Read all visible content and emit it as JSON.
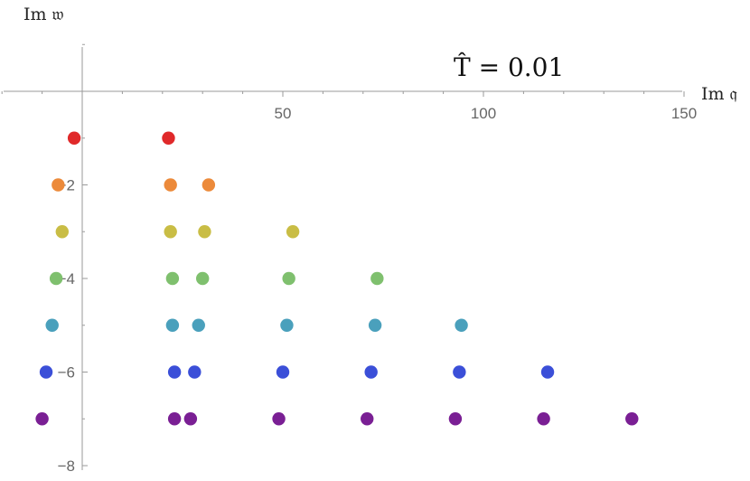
{
  "chart_data": {
    "type": "scatter",
    "title": "",
    "annotation": "T̂ = 0.01",
    "xlabel": "Im 𝔮",
    "ylabel": "Im 𝔴",
    "xlim": [
      -20,
      150
    ],
    "ylim": [
      -8,
      1.6
    ],
    "x_ticks": [
      50,
      100,
      150
    ],
    "y_ticks": [
      -2,
      -4,
      -6,
      -8
    ],
    "grid": false,
    "series": [
      {
        "color": "#e0292a",
        "points": [
          [
            -2,
            -1
          ],
          [
            21.5,
            -1
          ]
        ]
      },
      {
        "color": "#ec8a3a",
        "points": [
          [
            -6,
            -2
          ],
          [
            22,
            -2
          ],
          [
            31.5,
            -2
          ]
        ]
      },
      {
        "color": "#c9bd45",
        "points": [
          [
            -5,
            -3
          ],
          [
            22,
            -3
          ],
          [
            30.5,
            -3
          ],
          [
            52.5,
            -3
          ]
        ]
      },
      {
        "color": "#7fc06e",
        "points": [
          [
            -6.5,
            -4
          ],
          [
            22.5,
            -4
          ],
          [
            30,
            -4
          ],
          [
            51.5,
            -4
          ],
          [
            73.5,
            -4
          ]
        ]
      },
      {
        "color": "#4aa0bc",
        "points": [
          [
            -7.5,
            -5
          ],
          [
            22.5,
            -5
          ],
          [
            29,
            -5
          ],
          [
            51,
            -5
          ],
          [
            73,
            -5
          ],
          [
            94.5,
            -5
          ]
        ]
      },
      {
        "color": "#3b4fd8",
        "points": [
          [
            -9,
            -6
          ],
          [
            23,
            -6
          ],
          [
            28,
            -6
          ],
          [
            50,
            -6
          ],
          [
            72,
            -6
          ],
          [
            94,
            -6
          ],
          [
            116,
            -6
          ]
        ]
      },
      {
        "color": "#7a1f94",
        "points": [
          [
            -10,
            -7
          ],
          [
            23,
            -7
          ],
          [
            27,
            -7
          ],
          [
            49,
            -7
          ],
          [
            71,
            -7
          ],
          [
            93,
            -7
          ],
          [
            115,
            -7
          ],
          [
            137,
            -7
          ]
        ]
      }
    ]
  }
}
